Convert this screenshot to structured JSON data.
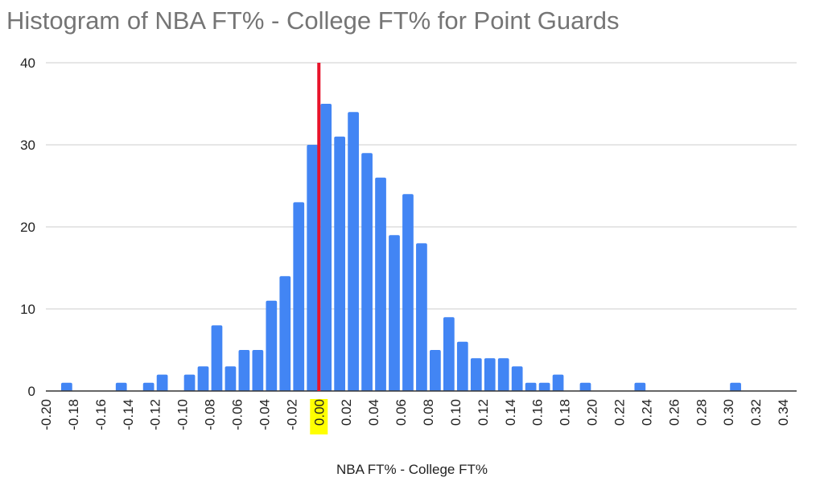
{
  "chart_data": {
    "type": "bar",
    "title": "Histogram of NBA FT% - College FT% for Point Guards",
    "xlabel": "NBA FT% - College FT%",
    "ylabel": "",
    "xlim": [
      -0.2,
      0.35
    ],
    "ylim": [
      0,
      40
    ],
    "bin_width": 0.01,
    "x_ticks": [
      "-0.20",
      "-0.18",
      "-0.16",
      "-0.14",
      "-0.12",
      "-0.10",
      "-0.08",
      "-0.06",
      "-0.04",
      "-0.02",
      "0.00",
      "0.02",
      "0.04",
      "0.06",
      "0.08",
      "0.10",
      "0.12",
      "0.14",
      "0.16",
      "0.18",
      "0.20",
      "0.22",
      "0.24",
      "0.26",
      "0.28",
      "0.30",
      "0.32",
      "0.34"
    ],
    "y_ticks": [
      "0",
      "10",
      "20",
      "30",
      "40"
    ],
    "highlighted_tick": "0.00",
    "reference_line": {
      "x": 0.0,
      "color": "#e8132a"
    },
    "bar_color": "#4285f4",
    "highlight_color": "#ffff00",
    "bins": [
      {
        "start": -0.19,
        "count": 1
      },
      {
        "start": -0.15,
        "count": 1
      },
      {
        "start": -0.13,
        "count": 1
      },
      {
        "start": -0.12,
        "count": 2
      },
      {
        "start": -0.1,
        "count": 2
      },
      {
        "start": -0.09,
        "count": 3
      },
      {
        "start": -0.08,
        "count": 8
      },
      {
        "start": -0.07,
        "count": 3
      },
      {
        "start": -0.06,
        "count": 5
      },
      {
        "start": -0.05,
        "count": 5
      },
      {
        "start": -0.04,
        "count": 11
      },
      {
        "start": -0.03,
        "count": 14
      },
      {
        "start": -0.02,
        "count": 23
      },
      {
        "start": -0.01,
        "count": 30
      },
      {
        "start": 0.0,
        "count": 35
      },
      {
        "start": 0.01,
        "count": 31
      },
      {
        "start": 0.02,
        "count": 34
      },
      {
        "start": 0.03,
        "count": 29
      },
      {
        "start": 0.04,
        "count": 26
      },
      {
        "start": 0.05,
        "count": 19
      },
      {
        "start": 0.06,
        "count": 24
      },
      {
        "start": 0.07,
        "count": 18
      },
      {
        "start": 0.08,
        "count": 5
      },
      {
        "start": 0.09,
        "count": 9
      },
      {
        "start": 0.1,
        "count": 6
      },
      {
        "start": 0.11,
        "count": 4
      },
      {
        "start": 0.12,
        "count": 4
      },
      {
        "start": 0.13,
        "count": 4
      },
      {
        "start": 0.14,
        "count": 3
      },
      {
        "start": 0.15,
        "count": 1
      },
      {
        "start": 0.16,
        "count": 1
      },
      {
        "start": 0.17,
        "count": 2
      },
      {
        "start": 0.19,
        "count": 1
      },
      {
        "start": 0.23,
        "count": 1
      },
      {
        "start": 0.3,
        "count": 1
      }
    ]
  }
}
